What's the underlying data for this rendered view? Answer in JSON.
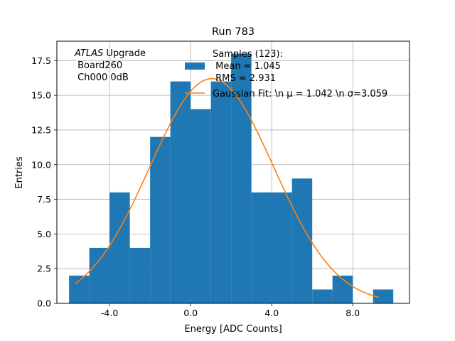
{
  "chart_data": {
    "type": "bar",
    "title": "Run 783",
    "xlabel": "Energy [ADC Counts]",
    "ylabel": "Entries",
    "xlim": [
      -6.6,
      10.8
    ],
    "ylim": [
      0,
      18.9
    ],
    "grid": true,
    "xticks": [
      -4.0,
      0.0,
      4.0,
      8.0
    ],
    "xtick_labels": [
      "-4.0",
      "0.0",
      "4.0",
      "8.0"
    ],
    "yticks": [
      0,
      2.5,
      5,
      7.5,
      10,
      12.5,
      15,
      17.5
    ],
    "ytick_labels": [
      "0.0",
      "2.5",
      "5.0",
      "7.5",
      "10.0",
      "12.5",
      "15.0",
      "17.5"
    ],
    "bin_edges": [
      -6,
      -5,
      -4,
      -3,
      -2,
      -1,
      0,
      1,
      2,
      3,
      4,
      5,
      6,
      7,
      8,
      9,
      10
    ],
    "values": [
      2,
      4,
      8,
      4,
      12,
      16,
      14,
      16,
      18,
      8,
      8,
      9,
      1,
      2,
      0,
      1
    ],
    "bar_color": "#1f77b4",
    "fit": {
      "mu": 1.042,
      "sigma": 3.059,
      "amplitude": 16.2,
      "x_range": [
        -5.7,
        9.3
      ],
      "color": "#ff7f0e"
    },
    "legend": {
      "position": "top-right",
      "samples_lines": [
        "Samples (123):",
        " Mean = 1.045",
        " RMS = 2.931"
      ],
      "fit_label": "Gaussian Fit: \\n μ = 1.042 \\n σ=3.059"
    },
    "annotation": {
      "position": "top-left",
      "line1_italic": "ATLAS",
      "line1_rest": " Upgrade",
      "line2": " Board260",
      "line3": " Ch000 0dB"
    }
  }
}
